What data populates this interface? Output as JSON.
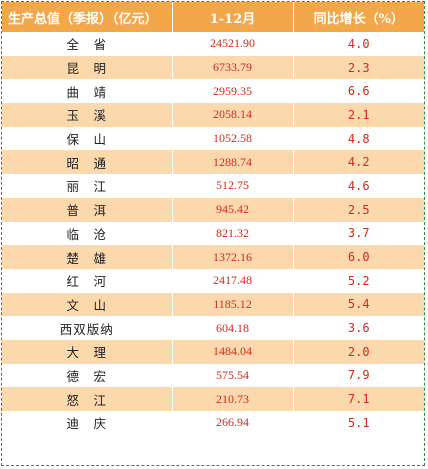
{
  "header": {
    "col_region": "生产总值（季报）（亿元）",
    "col_period": "1-12月",
    "col_growth": "同比增长（%）"
  },
  "rows": [
    {
      "region": "全　省",
      "value": "24521.90",
      "growth": "4.0"
    },
    {
      "region": "昆　明",
      "value": "6733.79",
      "growth": "2.3"
    },
    {
      "region": "曲　靖",
      "value": "2959.35",
      "growth": "6.6"
    },
    {
      "region": "玉　溪",
      "value": "2058.14",
      "growth": "2.1"
    },
    {
      "region": "保　山",
      "value": "1052.58",
      "growth": "4.8"
    },
    {
      "region": "昭　通",
      "value": "1288.74",
      "growth": "4.2"
    },
    {
      "region": "丽　江",
      "value": "512.75",
      "growth": "4.6"
    },
    {
      "region": "普　洱",
      "value": "945.42",
      "growth": "2.5"
    },
    {
      "region": "临　沧",
      "value": "821.32",
      "growth": "3.7"
    },
    {
      "region": "楚　雄",
      "value": "1372.16",
      "growth": "6.0"
    },
    {
      "region": "红　河",
      "value": "2417.48",
      "growth": "5.2"
    },
    {
      "region": "文　山",
      "value": "1185.12",
      "growth": "5.4"
    },
    {
      "region": "西双版纳",
      "value": "604.18",
      "growth": "3.6"
    },
    {
      "region": "大　理",
      "value": "1484.04",
      "growth": "2.0"
    },
    {
      "region": "德　宏",
      "value": "575.54",
      "growth": "7.9"
    },
    {
      "region": "怒　江",
      "value": "210.73",
      "growth": "7.1"
    },
    {
      "region": "迪　庆",
      "value": "266.94",
      "growth": "5.1"
    }
  ]
}
